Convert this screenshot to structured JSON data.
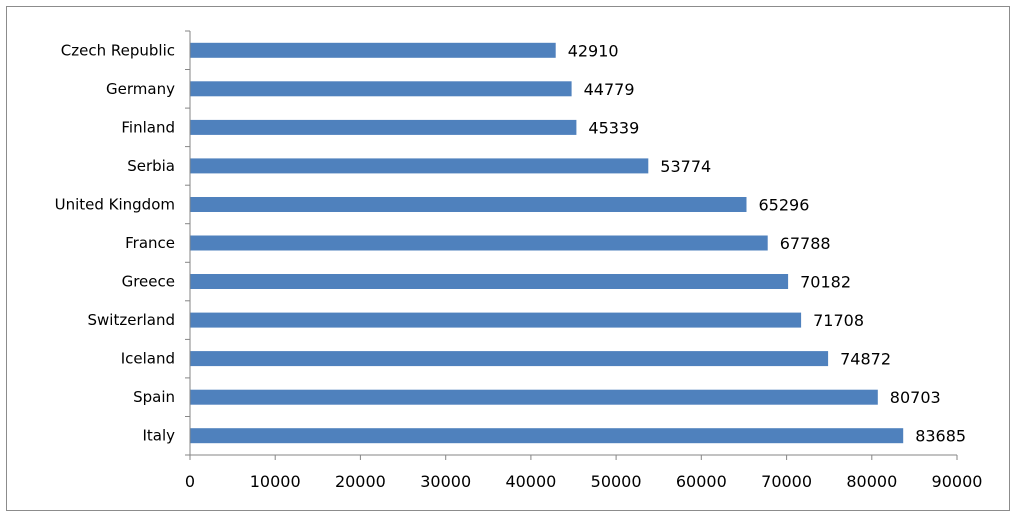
{
  "chart_data": {
    "type": "bar",
    "orientation": "horizontal",
    "categories": [
      "Czech Republic",
      "Germany",
      "Finland",
      "Serbia",
      "United Kingdom",
      "France",
      "Greece",
      "Switzerland",
      "Iceland",
      "Spain",
      "Italy"
    ],
    "series": [
      {
        "values": [
          42910,
          44779,
          45339,
          53774,
          65296,
          67788,
          70182,
          71708,
          74872,
          80703,
          83685
        ],
        "color": "#4f81bd"
      }
    ],
    "data_labels": [
      "42910",
      "44779",
      "45339",
      "53774",
      "65296",
      "67788",
      "70182",
      "71708",
      "74872",
      "80703",
      "83685"
    ],
    "xlim": [
      0,
      90000
    ],
    "x_ticks": [
      0,
      10000,
      20000,
      30000,
      40000,
      50000,
      60000,
      70000,
      80000,
      90000
    ],
    "x_tick_labels": [
      "0",
      "10000",
      "20000",
      "30000",
      "40000",
      "50000",
      "60000",
      "70000",
      "80000",
      "90000"
    ],
    "title": "",
    "xlabel": "",
    "ylabel": "",
    "grid": false,
    "legend": "none"
  }
}
